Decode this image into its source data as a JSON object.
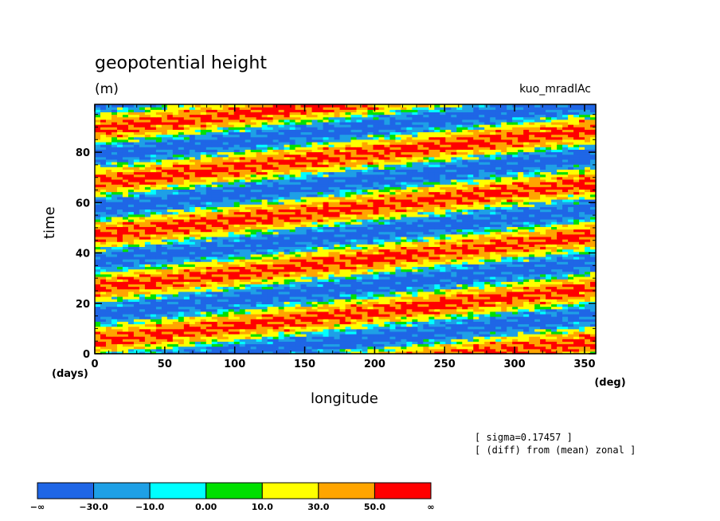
{
  "chart_data": {
    "type": "heatmap",
    "title": "geopotential height",
    "units": "(m)",
    "run_label": "kuo_mradlAc",
    "xlabel": "longitude",
    "ylabel": "time",
    "x_unit": "(deg)",
    "y_unit": "(days)",
    "xlim": [
      0,
      358
    ],
    "ylim": [
      0,
      99
    ],
    "xticks": [
      0,
      50,
      100,
      150,
      200,
      250,
      300,
      350
    ],
    "yticks": [
      0,
      20,
      40,
      60,
      80
    ],
    "notes": [
      "[ sigma=0.17457 ]",
      "[ (diff) from (mean) zonal ]"
    ],
    "pattern": {
      "description_values": "eastward-tilted bands; phase shifts by one wavelength over ~21 days per 360 deg",
      "band_period_days": 21,
      "phase_drift_days_per_360deg": 21
    },
    "levels": [
      "−∞",
      "−30.0",
      "−10.0",
      "0.00",
      "10.0",
      "30.0",
      "50.0",
      "∞"
    ],
    "colors": [
      "#1f66e6",
      "#1ea0e6",
      "#00ffff",
      "#00e000",
      "#ffff00",
      "#ffa500",
      "#ff0000"
    ]
  }
}
